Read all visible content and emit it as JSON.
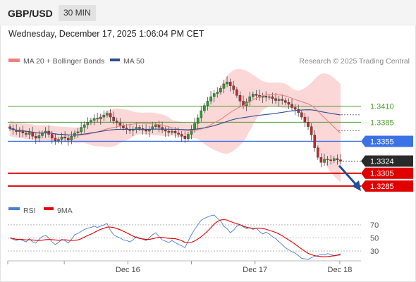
{
  "header": {
    "symbol": "GBP/USD",
    "timeframe": "30 MIN",
    "datetime": "Wednesday, December 17, 2025 1:06:04 PM CET"
  },
  "legend": {
    "ma20_label": "MA 20 + Bollinger Bands",
    "ma50_label": "MA 50",
    "ma20_color": "#f08080",
    "ma50_color": "#2c4f8a",
    "copyright": "Research © 2025 Trading Central"
  },
  "chart_data": [
    {
      "type": "candlestick",
      "title": "",
      "ylim": [
        1.3276,
        1.3466
      ],
      "x_ticks": [
        {
          "label": "Dec 16",
          "at": 0.34
        },
        {
          "label": "Dec 17",
          "at": 0.7
        },
        {
          "label": "Dec 18",
          "at": 0.94
        }
      ],
      "levels": [
        {
          "value": 1.341,
          "label": "1.3410",
          "style": "resistance-thin",
          "color": "#4a9a2a"
        },
        {
          "value": 1.3385,
          "label": "1.3385",
          "style": "resistance-thin",
          "color": "#4a9a2a"
        },
        {
          "value": 1.3355,
          "label": "1.3355",
          "style": "pivot",
          "color": "#3b73e6"
        },
        {
          "value": 1.3324,
          "label": "1.3324",
          "style": "last-price",
          "color": "#222222"
        },
        {
          "value": 1.3305,
          "label": "1.3305",
          "style": "support",
          "color": "#e00000"
        },
        {
          "value": 1.3285,
          "label": "1.3285",
          "style": "support",
          "color": "#e00000"
        }
      ],
      "close_approx": [
        1.3375,
        1.3373,
        1.337,
        1.3372,
        1.3368,
        1.3366,
        1.3369,
        1.3363,
        1.336,
        1.3364,
        1.3368,
        1.3371,
        1.3366,
        1.336,
        1.3356,
        1.3358,
        1.3362,
        1.336,
        1.3357,
        1.3363,
        1.3368,
        1.337,
        1.3377,
        1.3381,
        1.3385,
        1.3388,
        1.3391,
        1.339,
        1.3393,
        1.3396,
        1.3399,
        1.3393,
        1.3387,
        1.3384,
        1.338,
        1.3376,
        1.3374,
        1.3372,
        1.3374,
        1.3377,
        1.3375,
        1.3373,
        1.3371,
        1.3374,
        1.3378,
        1.3381,
        1.3377,
        1.3373,
        1.3371,
        1.3369,
        1.3371,
        1.3368,
        1.3366,
        1.3363,
        1.3359,
        1.3366,
        1.3374,
        1.3383,
        1.3392,
        1.3403,
        1.3411,
        1.3418,
        1.3425,
        1.343,
        1.3432,
        1.3438,
        1.3445,
        1.3448,
        1.3442,
        1.3436,
        1.3427,
        1.3418,
        1.3411,
        1.3417,
        1.3425,
        1.3429,
        1.3427,
        1.3424,
        1.3426,
        1.3424,
        1.3425,
        1.3422,
        1.3419,
        1.3421,
        1.3419,
        1.3416,
        1.3413,
        1.3408,
        1.3405,
        1.34,
        1.3393,
        1.3385,
        1.3378,
        1.3365,
        1.3345,
        1.333,
        1.3322,
        1.3327,
        1.3326,
        1.3325,
        1.3328,
        1.3326,
        1.3324
      ]
    },
    {
      "type": "line",
      "title": "",
      "series": [
        {
          "name": "RSI",
          "color": "#4a7fd4"
        },
        {
          "name": "9MA",
          "color": "#e00000"
        }
      ],
      "levels": [
        70,
        50,
        30
      ],
      "ylim": [
        15,
        85
      ],
      "rsi_approx": [
        50,
        48,
        46,
        48,
        46,
        44,
        49,
        44,
        42,
        48,
        52,
        54,
        50,
        44,
        40,
        43,
        48,
        46,
        42,
        48,
        55,
        57,
        60,
        63,
        65,
        66,
        68,
        66,
        68,
        70,
        72,
        62,
        55,
        52,
        50,
        47,
        46,
        44,
        47,
        52,
        50,
        48,
        46,
        50,
        55,
        58,
        52,
        47,
        45,
        43,
        46,
        43,
        40,
        38,
        35,
        45,
        55,
        63,
        70,
        77,
        80,
        82,
        84,
        85,
        80,
        76,
        68,
        64,
        58,
        62,
        68,
        70,
        67,
        64,
        66,
        63,
        65,
        60,
        56,
        59,
        56,
        52,
        49,
        44,
        40,
        35,
        32,
        29,
        27,
        23,
        19,
        18,
        17,
        20,
        22,
        23,
        25,
        24,
        26,
        25,
        23,
        24,
        26
      ]
    }
  ]
}
